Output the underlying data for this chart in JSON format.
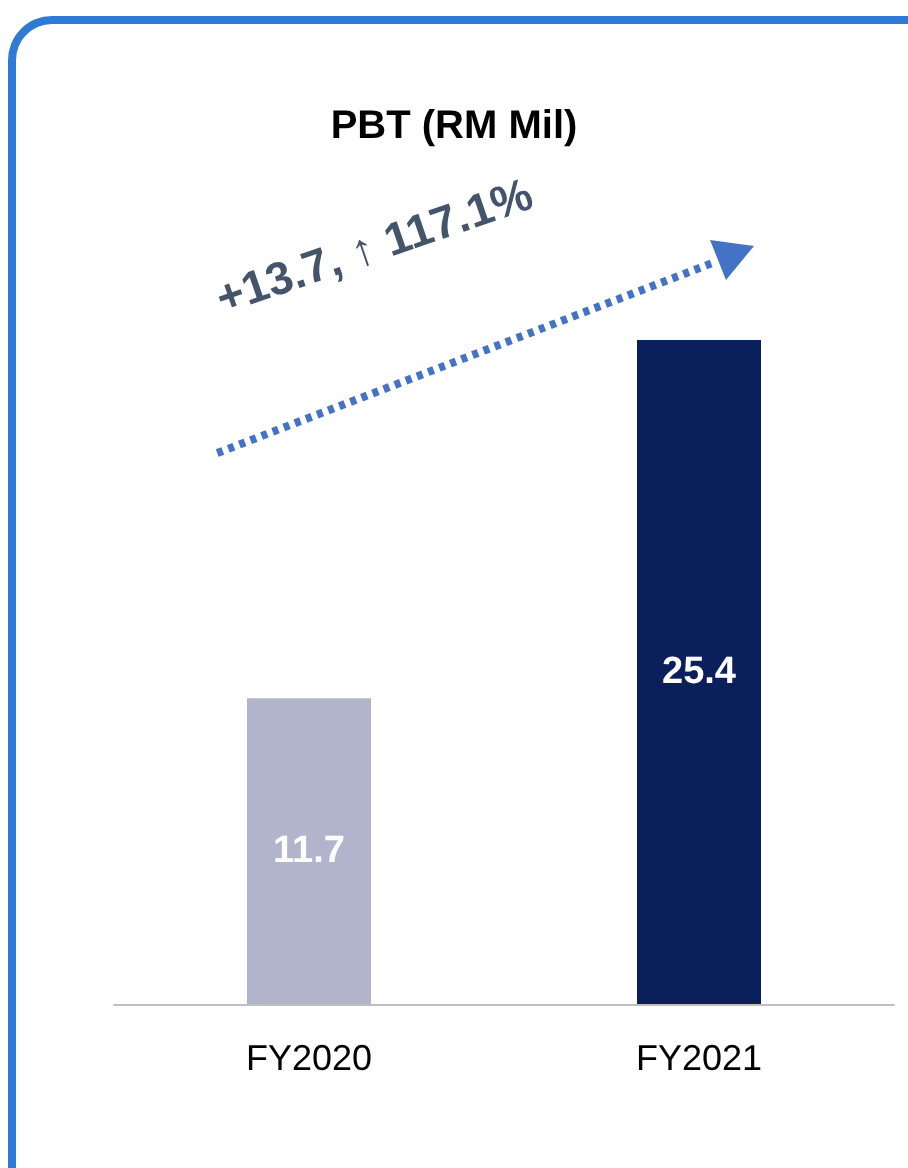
{
  "chart_data": {
    "type": "bar",
    "title": "PBT (RM Mil)",
    "categories": [
      "FY2020",
      "FY2021"
    ],
    "colors": [
      "#b1b4cb",
      "#0a1f5c"
    ],
    "values": [
      11.7,
      25.4
    ],
    "data_labels": true,
    "annotations": [
      "+13.7, ↑ 117.1%"
    ]
  }
}
